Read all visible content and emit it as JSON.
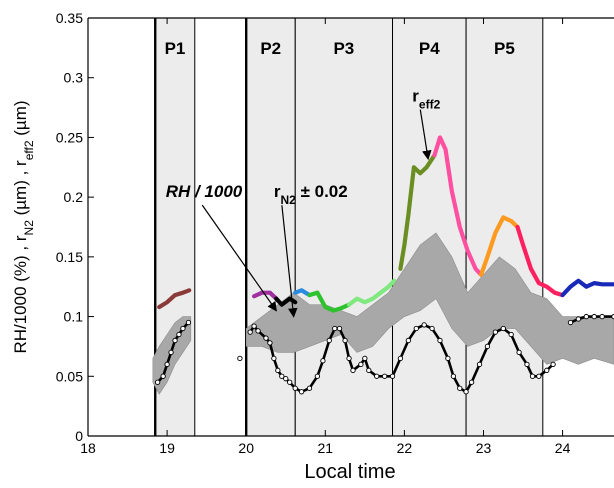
{
  "chart_data": {
    "type": "line",
    "xlabel": "Local time",
    "ylabel": "RH/1000 (%) ,  r",
    "ylabel_sub1": "N2",
    "ylabel_mid": " (µm) ,  r",
    "ylabel_sub2": "eff2",
    "ylabel_end": " (µm)",
    "xlim": [
      18,
      24.65
    ],
    "ylim": [
      0,
      0.35
    ],
    "x_ticks": [
      18,
      19,
      20,
      21,
      22,
      23,
      24
    ],
    "x_tick_labels": [
      "18",
      "19",
      "20",
      "21",
      "22",
      "23",
      "24"
    ],
    "y_ticks": [
      0,
      0.05,
      0.1,
      0.15,
      0.2,
      0.25,
      0.3,
      0.35
    ],
    "y_tick_labels": [
      "0",
      "0.05",
      "0.1",
      "0.15",
      "0.2",
      "0.25",
      "0.3",
      "0.35"
    ],
    "grid": false,
    "periods": [
      {
        "label": "P1",
        "start": 18.85,
        "end": 19.35
      },
      {
        "label": "P2",
        "start": 20.0,
        "end": 20.62
      },
      {
        "label": "P3",
        "start": 20.62,
        "end": 21.85
      },
      {
        "label": "P4",
        "start": 21.85,
        "end": 22.78
      },
      {
        "label": "P5",
        "start": 22.78,
        "end": 23.75
      }
    ],
    "thick_period_lines": [
      18.85,
      20.0
    ],
    "annotations": [
      {
        "text": "RH / 1000",
        "x": 19.95,
        "y": 0.2,
        "arrow_to": [
          20.38,
          0.105
        ]
      },
      {
        "text": "r",
        "sub": "N2",
        "after": "  ± 0.02",
        "x": 20.35,
        "y": 0.2,
        "arrow_to": [
          20.6,
          0.1
        ]
      },
      {
        "text": "r",
        "sub": "eff2",
        "x": 22.1,
        "y": 0.28,
        "arrow_to": [
          22.3,
          0.232
        ]
      }
    ],
    "series": [
      {
        "role": "RH/1000",
        "color": "#000000",
        "markers": "open-circle",
        "segments": [
          [
            [
              18.88,
              0.045
            ],
            [
              18.95,
              0.05
            ],
            [
              19.0,
              0.06
            ],
            [
              19.05,
              0.07
            ],
            [
              19.1,
              0.08
            ],
            [
              19.15,
              0.085
            ],
            [
              19.2,
              0.09
            ],
            [
              19.27,
              0.095
            ]
          ],
          [
            [
              19.92,
              0.065
            ]
          ],
          [
            [
              20.05,
              0.087
            ],
            [
              20.1,
              0.092
            ],
            [
              20.15,
              0.088
            ],
            [
              20.25,
              0.082
            ],
            [
              20.3,
              0.078
            ],
            [
              20.35,
              0.065
            ],
            [
              20.4,
              0.055
            ],
            [
              20.45,
              0.05
            ],
            [
              20.5,
              0.048
            ],
            [
              20.55,
              0.045
            ],
            [
              20.62,
              0.04
            ],
            [
              20.7,
              0.037
            ],
            [
              20.8,
              0.04
            ],
            [
              20.9,
              0.05
            ],
            [
              20.97,
              0.063
            ],
            [
              21.05,
              0.08
            ],
            [
              21.12,
              0.09
            ],
            [
              21.18,
              0.09
            ],
            [
              21.25,
              0.08
            ],
            [
              21.3,
              0.065
            ],
            [
              21.35,
              0.055
            ],
            [
              21.45,
              0.06
            ],
            [
              21.5,
              0.065
            ],
            [
              21.55,
              0.055
            ],
            [
              21.65,
              0.05
            ],
            [
              21.75,
              0.05
            ],
            [
              21.85,
              0.05
            ],
            [
              21.95,
              0.065
            ],
            [
              22.05,
              0.08
            ],
            [
              22.15,
              0.09
            ],
            [
              22.25,
              0.093
            ],
            [
              22.35,
              0.09
            ],
            [
              22.45,
              0.08
            ],
            [
              22.55,
              0.065
            ],
            [
              22.62,
              0.05
            ],
            [
              22.7,
              0.04
            ],
            [
              22.78,
              0.037
            ],
            [
              22.85,
              0.045
            ],
            [
              22.95,
              0.06
            ],
            [
              23.05,
              0.075
            ],
            [
              23.15,
              0.087
            ],
            [
              23.25,
              0.09
            ],
            [
              23.35,
              0.085
            ],
            [
              23.45,
              0.07
            ],
            [
              23.55,
              0.06
            ],
            [
              23.62,
              0.05
            ],
            [
              23.7,
              0.05
            ],
            [
              23.8,
              0.055
            ],
            [
              23.88,
              0.06
            ]
          ],
          [
            [
              24.1,
              0.095
            ],
            [
              24.2,
              0.098
            ],
            [
              24.3,
              0.1
            ],
            [
              24.4,
              0.1
            ],
            [
              24.5,
              0.1
            ],
            [
              24.65,
              0.1
            ]
          ]
        ]
      },
      {
        "role": "rN2 ± 0.02",
        "color": "#a8a8a8",
        "band": [
          [
            18.82,
            0.045,
            0.065
          ],
          [
            18.9,
            0.035,
            0.075
          ],
          [
            19.0,
            0.045,
            0.085
          ],
          [
            19.1,
            0.06,
            0.095
          ],
          [
            19.2,
            0.07,
            0.1
          ],
          [
            19.3,
            0.08,
            0.1
          ],
          [
            20.0,
            0.075,
            0.09
          ],
          [
            20.2,
            0.075,
            0.1
          ],
          [
            20.4,
            0.07,
            0.11
          ],
          [
            20.6,
            0.07,
            0.12
          ],
          [
            20.8,
            0.075,
            0.11
          ],
          [
            21.0,
            0.08,
            0.11
          ],
          [
            21.2,
            0.085,
            0.105
          ],
          [
            21.4,
            0.07,
            0.1
          ],
          [
            21.6,
            0.075,
            0.11
          ],
          [
            21.8,
            0.09,
            0.12
          ],
          [
            22.0,
            0.1,
            0.14
          ],
          [
            22.2,
            0.105,
            0.16
          ],
          [
            22.4,
            0.115,
            0.17
          ],
          [
            22.6,
            0.09,
            0.15
          ],
          [
            22.8,
            0.075,
            0.12
          ],
          [
            23.0,
            0.08,
            0.135
          ],
          [
            23.2,
            0.09,
            0.15
          ],
          [
            23.4,
            0.09,
            0.14
          ],
          [
            23.6,
            0.075,
            0.12
          ],
          [
            23.8,
            0.06,
            0.115
          ],
          [
            24.0,
            0.065,
            0.1
          ],
          [
            24.2,
            0.06,
            0.1
          ],
          [
            24.4,
            0.065,
            0.1
          ],
          [
            24.65,
            0.06,
            0.1
          ]
        ]
      },
      {
        "role": "reff2",
        "color_segments": [
          {
            "color": "#8b3a3a",
            "points": [
              [
                18.9,
                0.108
              ],
              [
                19.0,
                0.112
              ],
              [
                19.1,
                0.118
              ],
              [
                19.2,
                0.12
              ],
              [
                19.28,
                0.122
              ]
            ]
          },
          {
            "color": "#a030a0",
            "points": [
              [
                20.1,
                0.117
              ],
              [
                20.2,
                0.12
              ],
              [
                20.3,
                0.12
              ],
              [
                20.38,
                0.115
              ]
            ]
          },
          {
            "color": "#000000",
            "points": [
              [
                20.38,
                0.115
              ],
              [
                20.45,
                0.11
              ],
              [
                20.55,
                0.115
              ],
              [
                20.62,
                0.112
              ]
            ]
          },
          {
            "color": "#2b8be0",
            "points": [
              [
                20.62,
                0.12
              ],
              [
                20.7,
                0.122
              ],
              [
                20.8,
                0.118
              ]
            ]
          },
          {
            "color": "#2ec22e",
            "points": [
              [
                20.8,
                0.118
              ],
              [
                20.9,
                0.12
              ],
              [
                21.0,
                0.108
              ],
              [
                21.1,
                0.105
              ],
              [
                21.2,
                0.107
              ],
              [
                21.3,
                0.11
              ]
            ]
          },
          {
            "color": "#7fe87f",
            "points": [
              [
                21.3,
                0.11
              ],
              [
                21.4,
                0.115
              ],
              [
                21.5,
                0.112
              ],
              [
                21.6,
                0.115
              ],
              [
                21.7,
                0.12
              ],
              [
                21.8,
                0.125
              ],
              [
                21.87,
                0.13
              ]
            ]
          },
          {
            "color": "#6b8e23",
            "points": [
              [
                21.95,
                0.14
              ],
              [
                22.0,
                0.16
              ],
              [
                22.05,
                0.185
              ],
              [
                22.12,
                0.225
              ],
              [
                22.2,
                0.22
              ],
              [
                22.28,
                0.225
              ],
              [
                22.38,
                0.235
              ]
            ]
          },
          {
            "color": "#ff4fa0",
            "points": [
              [
                22.38,
                0.235
              ],
              [
                22.45,
                0.25
              ],
              [
                22.52,
                0.24
              ],
              [
                22.6,
                0.205
              ],
              [
                22.7,
                0.175
              ],
              [
                22.8,
                0.155
              ],
              [
                22.9,
                0.14
              ],
              [
                22.97,
                0.135
              ]
            ]
          },
          {
            "color": "#ff9a20",
            "points": [
              [
                22.97,
                0.135
              ],
              [
                23.05,
                0.15
              ],
              [
                23.15,
                0.17
              ],
              [
                23.25,
                0.183
              ],
              [
                23.35,
                0.18
              ],
              [
                23.43,
                0.175
              ]
            ]
          },
          {
            "color": "#ff2060",
            "points": [
              [
                23.43,
                0.175
              ],
              [
                23.5,
                0.16
              ],
              [
                23.6,
                0.14
              ],
              [
                23.7,
                0.128
              ],
              [
                23.8,
                0.125
              ],
              [
                23.9,
                0.12
              ],
              [
                24.0,
                0.118
              ]
            ]
          },
          {
            "color": "#1a2ab8",
            "points": [
              [
                24.0,
                0.118
              ],
              [
                24.1,
                0.125
              ],
              [
                24.2,
                0.13
              ],
              [
                24.3,
                0.125
              ],
              [
                24.4,
                0.128
              ],
              [
                24.5,
                0.127
              ],
              [
                24.65,
                0.127
              ]
            ]
          }
        ]
      }
    ]
  }
}
